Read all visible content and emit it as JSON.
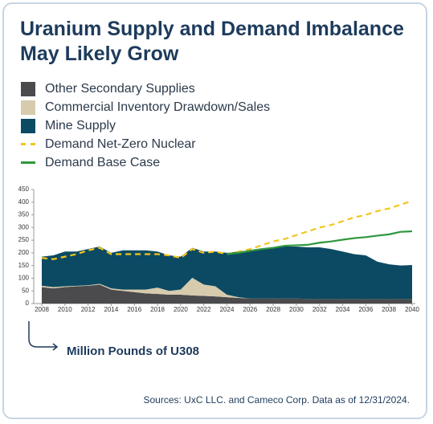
{
  "chart_data": {
    "type": "stacked-area",
    "title": "Uranium Supply and Demand Imbalance May Likely Grow",
    "y_label": "Million Pounds of U308",
    "source": "Sources: UxC LLC. and Cameco Corp. Data as of 12/31/2024.",
    "x": [
      2008,
      2009,
      2010,
      2011,
      2012,
      2013,
      2014,
      2015,
      2016,
      2017,
      2018,
      2019,
      2020,
      2021,
      2022,
      2023,
      2024,
      2025,
      2026,
      2027,
      2028,
      2029,
      2030,
      2031,
      2032,
      2033,
      2034,
      2035,
      2036,
      2037,
      2038,
      2039,
      2040
    ],
    "xlim": [
      2008,
      2040
    ],
    "xticks": [
      2008,
      2010,
      2012,
      2014,
      2016,
      2018,
      2020,
      2022,
      2024,
      2026,
      2028,
      2030,
      2032,
      2034,
      2036,
      2038,
      2040
    ],
    "ylim": [
      0,
      450
    ],
    "yticks": [
      0,
      50,
      100,
      150,
      200,
      250,
      300,
      350,
      400,
      450
    ],
    "series": [
      {
        "name": "Other Secondary Supplies",
        "kind": "area",
        "color": "#4b4b4d",
        "values": [
          65,
          60,
          65,
          68,
          70,
          75,
          55,
          50,
          45,
          40,
          38,
          35,
          35,
          32,
          30,
          28,
          25,
          22,
          20,
          20,
          20,
          20,
          20,
          18,
          18,
          18,
          18,
          18,
          18,
          18,
          18,
          18,
          18
        ]
      },
      {
        "name": "Commercial Inventory Drawdown/Sales",
        "kind": "area",
        "color": "#d6cbad",
        "values": [
          5,
          5,
          3,
          2,
          2,
          3,
          5,
          5,
          10,
          15,
          25,
          15,
          20,
          70,
          45,
          40,
          10,
          3,
          0,
          0,
          0,
          0,
          0,
          0,
          0,
          0,
          0,
          0,
          0,
          0,
          0,
          0,
          0
        ]
      },
      {
        "name": "Mine Supply",
        "kind": "area",
        "color": "#0c4a63",
        "values": [
          115,
          125,
          137,
          135,
          143,
          147,
          140,
          155,
          155,
          155,
          142,
          140,
          130,
          118,
          130,
          137,
          165,
          180,
          190,
          195,
          200,
          205,
          205,
          204,
          204,
          197,
          187,
          177,
          172,
          147,
          137,
          132,
          134
        ]
      },
      {
        "name": "Demand Net-Zero Nuclear",
        "kind": "line",
        "dashed": true,
        "color": "#f4c51b",
        "values": [
          180,
          175,
          185,
          195,
          210,
          220,
          195,
          195,
          195,
          195,
          195,
          190,
          180,
          215,
          200,
          205,
          195,
          205,
          215,
          230,
          245,
          255,
          270,
          285,
          300,
          310,
          325,
          340,
          350,
          365,
          375,
          390,
          405
        ]
      },
      {
        "name": "Demand Base Case",
        "kind": "line",
        "dashed": false,
        "color": "#2e973e",
        "values": [
          null,
          null,
          null,
          null,
          null,
          null,
          null,
          null,
          null,
          null,
          null,
          null,
          null,
          null,
          null,
          null,
          195,
          200,
          208,
          215,
          220,
          228,
          230,
          232,
          240,
          245,
          252,
          258,
          262,
          268,
          273,
          283,
          285
        ]
      }
    ]
  }
}
